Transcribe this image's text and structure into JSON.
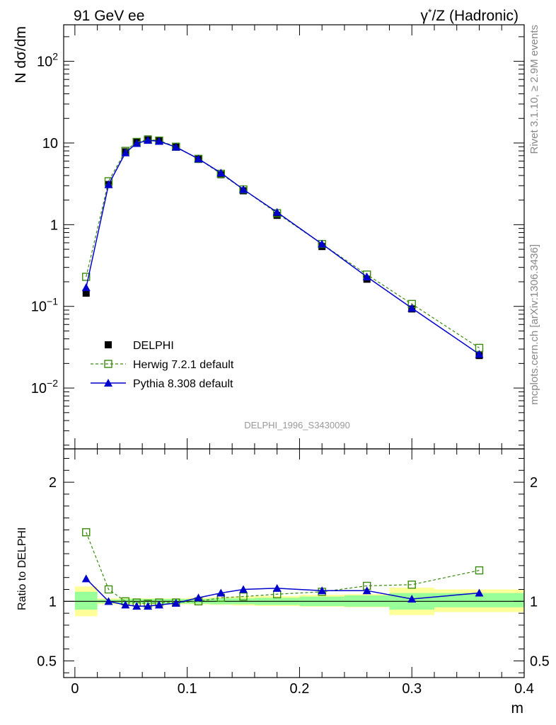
{
  "header": {
    "left": "91 GeV ee",
    "right": "γ*/Z (Hadronic)"
  },
  "side_text": {
    "rivet": "Rivet 3.1.10, ≥ 2.9M events",
    "mcplots": "mcplots.cern.ch [arXiv:1306.3436]"
  },
  "analysis_label": "DELPHI_1996_S3430090",
  "chart_data": [
    {
      "type": "line",
      "panel": "main",
      "ylabel": "N dσ/dm",
      "yscale": "log",
      "ylim": [
        0.0018,
        280
      ],
      "xlim": [
        -0.01,
        0.4
      ],
      "yticks": [
        {
          "value": 0.01,
          "base": "10",
          "exp": "−2"
        },
        {
          "value": 0.1,
          "base": "10",
          "exp": "−1"
        },
        {
          "value": 1,
          "base": "1",
          "exp": ""
        },
        {
          "value": 10,
          "base": "10",
          "exp": ""
        },
        {
          "value": 100,
          "base": "10",
          "exp": "2"
        }
      ],
      "legend_position": "bottom-left",
      "x": [
        0.01,
        0.03,
        0.045,
        0.055,
        0.065,
        0.075,
        0.09,
        0.11,
        0.13,
        0.15,
        0.18,
        0.22,
        0.26,
        0.3,
        0.36
      ],
      "series": [
        {
          "name": "DELPHI",
          "style": "data",
          "color": "#000000",
          "marker": "filled-square",
          "values": [
            0.145,
            3.1,
            7.8,
            10.4,
            11.2,
            10.8,
            9.0,
            6.3,
            4.1,
            2.6,
            1.3,
            0.54,
            0.215,
            0.093,
            0.025
          ]
        },
        {
          "name": "Herwig 7.2.1 default",
          "style": "dashed",
          "color": "#3a8a0d",
          "marker": "open-square",
          "values": [
            0.23,
            3.4,
            8.0,
            10.3,
            11.0,
            10.7,
            9.0,
            6.4,
            4.2,
            2.7,
            1.38,
            0.58,
            0.245,
            0.107,
            0.031
          ]
        },
        {
          "name": "Pythia 8.308 default",
          "style": "solid",
          "color": "#0000cc",
          "marker": "filled-triangle",
          "values": [
            0.17,
            3.1,
            7.6,
            9.9,
            10.8,
            10.5,
            8.9,
            6.4,
            4.3,
            2.7,
            1.42,
            0.58,
            0.23,
            0.095,
            0.026
          ]
        }
      ]
    },
    {
      "type": "line",
      "panel": "ratio",
      "ylabel": "Ratio to DELPHI",
      "xlabel": "m",
      "ylim": [
        0.36,
        2.28
      ],
      "xlim": [
        -0.01,
        0.4
      ],
      "yticks": [
        0.5,
        1,
        2
      ],
      "ytick_labels": [
        "0.5",
        "1",
        "2"
      ],
      "xticks": [
        0,
        0.1,
        0.2,
        0.3,
        0.4
      ],
      "xtick_labels": [
        "0",
        "0.1",
        "0.2",
        "0.3",
        "0.4"
      ],
      "x": [
        0.01,
        0.03,
        0.045,
        0.055,
        0.065,
        0.075,
        0.09,
        0.11,
        0.13,
        0.15,
        0.18,
        0.22,
        0.26,
        0.3,
        0.36
      ],
      "uncertainty_bands": {
        "bins": [
          [
            0.0,
            0.02
          ],
          [
            0.02,
            0.04
          ],
          [
            0.04,
            0.05
          ],
          [
            0.05,
            0.06
          ],
          [
            0.06,
            0.07
          ],
          [
            0.07,
            0.08
          ],
          [
            0.08,
            0.1
          ],
          [
            0.1,
            0.12
          ],
          [
            0.12,
            0.14
          ],
          [
            0.14,
            0.16
          ],
          [
            0.16,
            0.2
          ],
          [
            0.2,
            0.24
          ],
          [
            0.24,
            0.28
          ],
          [
            0.28,
            0.32
          ],
          [
            0.32,
            0.4
          ]
        ],
        "inner": [
          [
            0.93,
            1.08
          ],
          [
            0.985,
            1.015
          ],
          [
            0.98,
            1.02
          ],
          [
            0.98,
            1.02
          ],
          [
            0.98,
            1.02
          ],
          [
            0.98,
            1.02
          ],
          [
            0.98,
            1.02
          ],
          [
            0.98,
            1.02
          ],
          [
            0.975,
            1.025
          ],
          [
            0.975,
            1.025
          ],
          [
            0.97,
            1.03
          ],
          [
            0.96,
            1.04
          ],
          [
            0.955,
            1.05
          ],
          [
            0.93,
            1.07
          ],
          [
            0.95,
            1.07
          ]
        ],
        "outer": [
          [
            0.875,
            1.125
          ],
          [
            0.975,
            1.025
          ],
          [
            0.975,
            1.025
          ],
          [
            0.975,
            1.025
          ],
          [
            0.975,
            1.025
          ],
          [
            0.975,
            1.025
          ],
          [
            0.975,
            1.025
          ],
          [
            0.975,
            1.03
          ],
          [
            0.97,
            1.035
          ],
          [
            0.965,
            1.04
          ],
          [
            0.96,
            1.045
          ],
          [
            0.955,
            1.055
          ],
          [
            0.95,
            1.06
          ],
          [
            0.885,
            1.115
          ],
          [
            0.91,
            1.1
          ]
        ],
        "inner_color": "#99ff99",
        "outer_color": "#ffff99"
      },
      "series": [
        {
          "name": "Herwig 7.2.1 default",
          "style": "dashed",
          "color": "#3a8a0d",
          "marker": "open-square",
          "values": [
            1.58,
            1.1,
            1.0,
            0.99,
            0.98,
            0.99,
            0.99,
            1.0,
            1.03,
            1.04,
            1.06,
            1.08,
            1.13,
            1.14,
            1.26
          ]
        },
        {
          "name": "Pythia 8.308 default",
          "style": "solid",
          "color": "#0000cc",
          "marker": "filled-triangle",
          "values": [
            1.19,
            1.0,
            0.97,
            0.96,
            0.96,
            0.97,
            0.985,
            1.03,
            1.07,
            1.1,
            1.11,
            1.09,
            1.09,
            1.02,
            1.07
          ]
        }
      ]
    }
  ]
}
